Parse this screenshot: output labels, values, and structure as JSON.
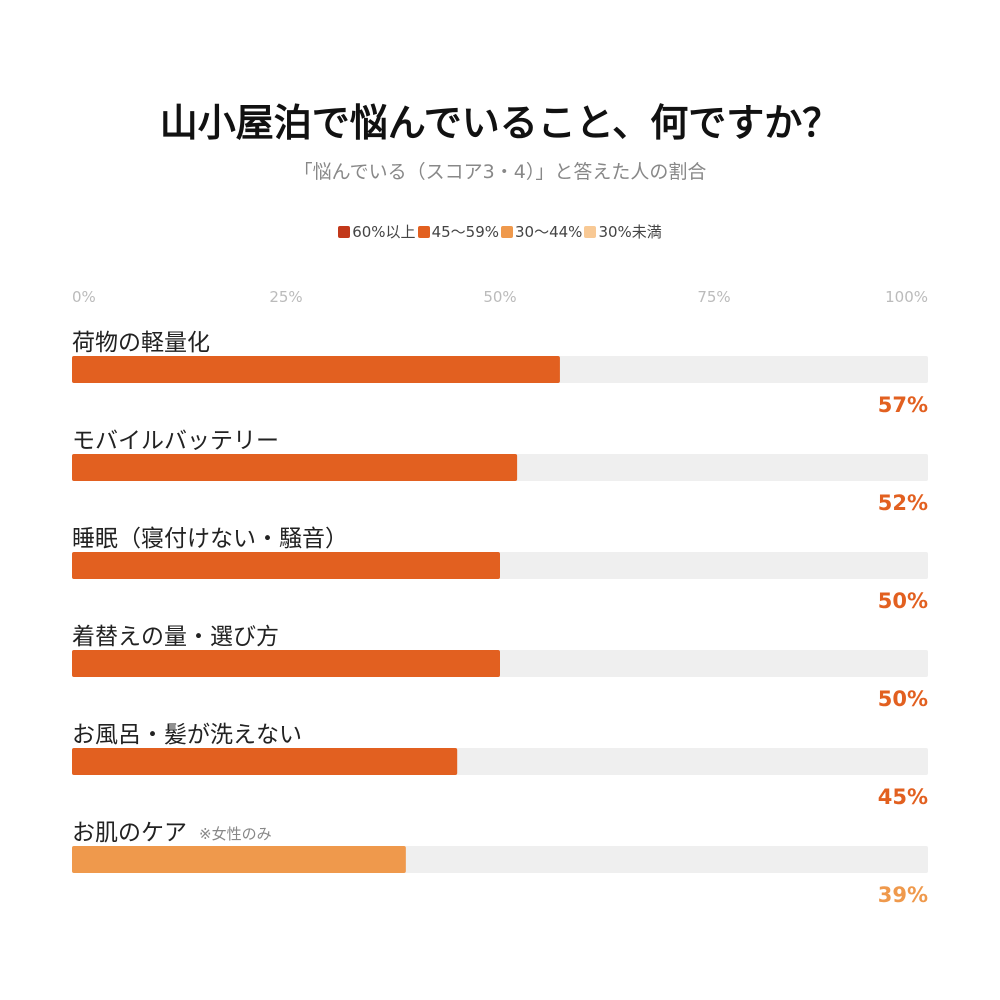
{
  "title": "山小屋泊で悩んでいること、何ですか？",
  "subtitle": "「悩んでいる（スコア3・4）」と答えた人の割合",
  "legend": [
    {
      "label": "60%以上",
      "color": "#c2381a"
    },
    {
      "label": "45〜59%",
      "color": "#e26020"
    },
    {
      "label": "30〜44%",
      "color": "#ef994c"
    },
    {
      "label": "30%未満",
      "color": "#f8c995"
    }
  ],
  "chart_data": {
    "type": "bar",
    "orientation": "horizontal",
    "x_ticks": [
      "0%",
      "25%",
      "50%",
      "75%",
      "100%"
    ],
    "xlim": [
      0,
      100
    ],
    "grid": false,
    "track_color": "#efefef",
    "categories": [
      {
        "label": "荷物の軽量化",
        "note": "",
        "value": 57,
        "value_label": "57%",
        "color": "#e26020"
      },
      {
        "label": "モバイルバッテリー",
        "note": "",
        "value": 52,
        "value_label": "52%",
        "color": "#e26020"
      },
      {
        "label": "睡眠（寝付けない・騒音）",
        "note": "",
        "value": 50,
        "value_label": "50%",
        "color": "#e26020"
      },
      {
        "label": "着替えの量・選び方",
        "note": "",
        "value": 50,
        "value_label": "50%",
        "color": "#e26020"
      },
      {
        "label": "お風呂・髪が洗えない",
        "note": "",
        "value": 45,
        "value_label": "45%",
        "color": "#e26020"
      },
      {
        "label": "お肌のケア",
        "note": "※女性のみ",
        "value": 39,
        "value_label": "39%",
        "color": "#ef994c"
      }
    ]
  }
}
